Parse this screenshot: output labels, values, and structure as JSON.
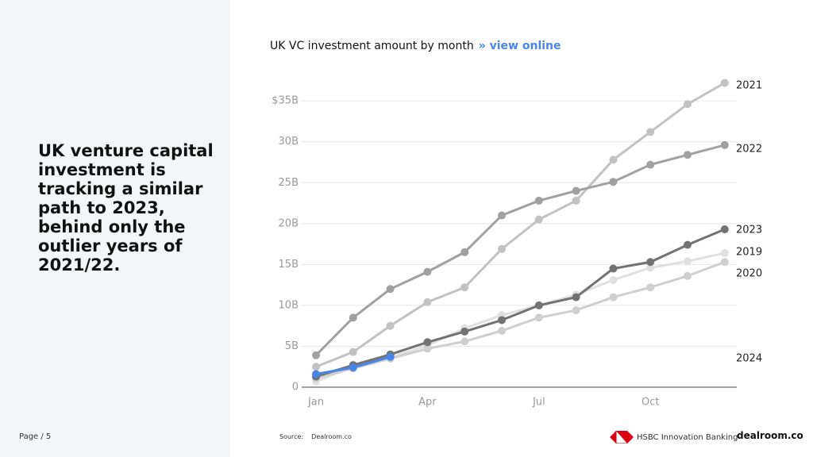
{
  "slide": {
    "headline": "UK venture capital investment is tracking a similar path to 2023, behind only the outlier years of 2021/22.",
    "page": "Page / 5",
    "source_label": "Source:",
    "source": "Dealroom.co",
    "partner": "HSBC Innovation Banking",
    "brand": "dealroom.co"
  },
  "chart_data": {
    "type": "line",
    "title": "UK VC investment amount by month",
    "link": "» view online",
    "categories": [
      "Jan",
      null,
      null,
      "Apr",
      null,
      null,
      "Jul",
      null,
      null,
      "Oct",
      null,
      null
    ],
    "ylim": [
      0,
      37.5
    ],
    "yticks": [
      0,
      {
        "value": 5,
        "label": "5B"
      },
      {
        "value": 10,
        "label": "10B"
      },
      {
        "value": 15,
        "label": "15B"
      },
      {
        "value": 20,
        "label": "20B"
      },
      {
        "value": 25,
        "label": "25B"
      },
      {
        "value": 30,
        "label": "30B"
      },
      {
        "value": 35,
        "label": "$35B"
      }
    ],
    "grid": true,
    "series": [
      {
        "name": "2019",
        "color": "#e0e0e0",
        "values": [
          0.7,
          2.5,
          3.6,
          5.1,
          7.2,
          8.8,
          10.0,
          11.3,
          13.1,
          14.6,
          15.4,
          16.4
        ]
      },
      {
        "name": "2020",
        "color": "#cfcfcf",
        "values": [
          1.1,
          2.3,
          3.5,
          4.7,
          5.6,
          6.9,
          8.5,
          9.4,
          11.0,
          12.2,
          13.6,
          15.3
        ]
      },
      {
        "name": "2021",
        "color": "#c2c2c2",
        "values": [
          2.5,
          4.3,
          7.5,
          10.4,
          12.2,
          16.9,
          20.5,
          22.8,
          27.8,
          31.2,
          34.6,
          37.2
        ]
      },
      {
        "name": "2022",
        "color": "#a0a0a0",
        "values": [
          3.9,
          8.5,
          12.0,
          14.1,
          16.5,
          21.0,
          22.8,
          24.0,
          25.1,
          27.2,
          28.4,
          29.6
        ]
      },
      {
        "name": "2023",
        "color": "#727272",
        "values": [
          1.3,
          2.7,
          4.0,
          5.5,
          6.8,
          8.2,
          10.0,
          11.0,
          14.5,
          15.3,
          17.4,
          19.3
        ]
      },
      {
        "name": "2024",
        "color": "#4a86e8",
        "values": [
          1.6,
          2.4,
          3.7,
          null,
          null,
          null,
          null,
          null,
          null,
          null,
          null,
          null
        ]
      }
    ]
  }
}
